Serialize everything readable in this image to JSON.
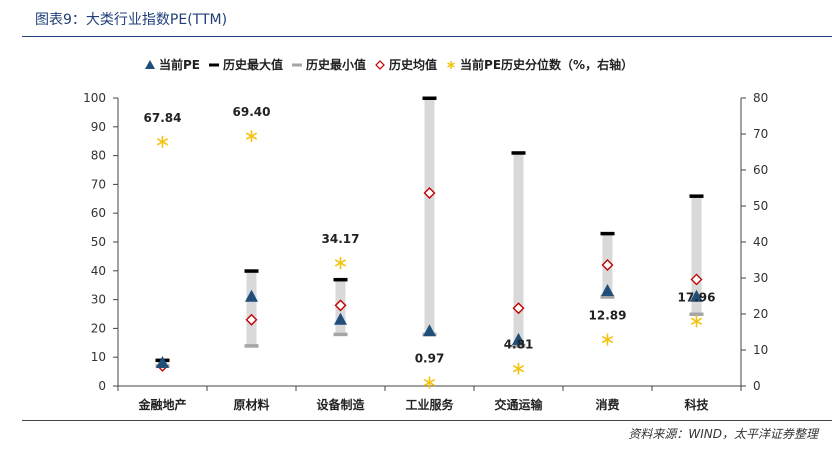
{
  "header": {
    "title": "图表9：大类行业指数PE(TTM)"
  },
  "source": "资料来源：WIND，太平洋证券整理",
  "chart_data": {
    "type": "bar",
    "categories": [
      "金融地产",
      "原材料",
      "设备制造",
      "工业服务",
      "交通运输",
      "消费",
      "科技"
    ],
    "series": [
      {
        "name": "当前PE",
        "axis": "left",
        "marker": "triangle",
        "color": "#1f4e79",
        "values": [
          8,
          31,
          23,
          19,
          16,
          33,
          31
        ]
      },
      {
        "name": "历史最大值",
        "axis": "left",
        "marker": "dash",
        "color": "#000000",
        "values": [
          9,
          40,
          37,
          100,
          81,
          53,
          66
        ]
      },
      {
        "name": "历史最小值",
        "axis": "left",
        "marker": "dash",
        "color": "#a6a6a6",
        "values": [
          7,
          14,
          18,
          18,
          14,
          31,
          25
        ]
      },
      {
        "name": "历史均值",
        "axis": "left",
        "marker": "diamond",
        "color": "#c00000",
        "values": [
          7,
          23,
          28,
          67,
          27,
          42,
          37
        ]
      },
      {
        "name": "当前PE历史分位数（%，右轴）",
        "axis": "right",
        "marker": "asterisk",
        "color": "#f4c20d",
        "values": [
          67.84,
          69.4,
          34.17,
          0.97,
          4.81,
          12.89,
          17.96
        ]
      }
    ],
    "data_labels": [
      "67.84",
      "69.40",
      "34.17",
      "0.97",
      "4.81",
      "12.89",
      "17.96"
    ],
    "ylim_left": [
      0,
      100
    ],
    "ylim_right": [
      0,
      80
    ],
    "yticks_left": [
      "0",
      "10",
      "20",
      "30",
      "40",
      "50",
      "60",
      "70",
      "80",
      "90",
      "100"
    ],
    "yticks_right": [
      "0",
      "10",
      "20",
      "30",
      "40",
      "50",
      "60",
      "70",
      "80"
    ],
    "range_bar_color": "#d9d9d9",
    "legend_position": "top",
    "grid": false
  }
}
